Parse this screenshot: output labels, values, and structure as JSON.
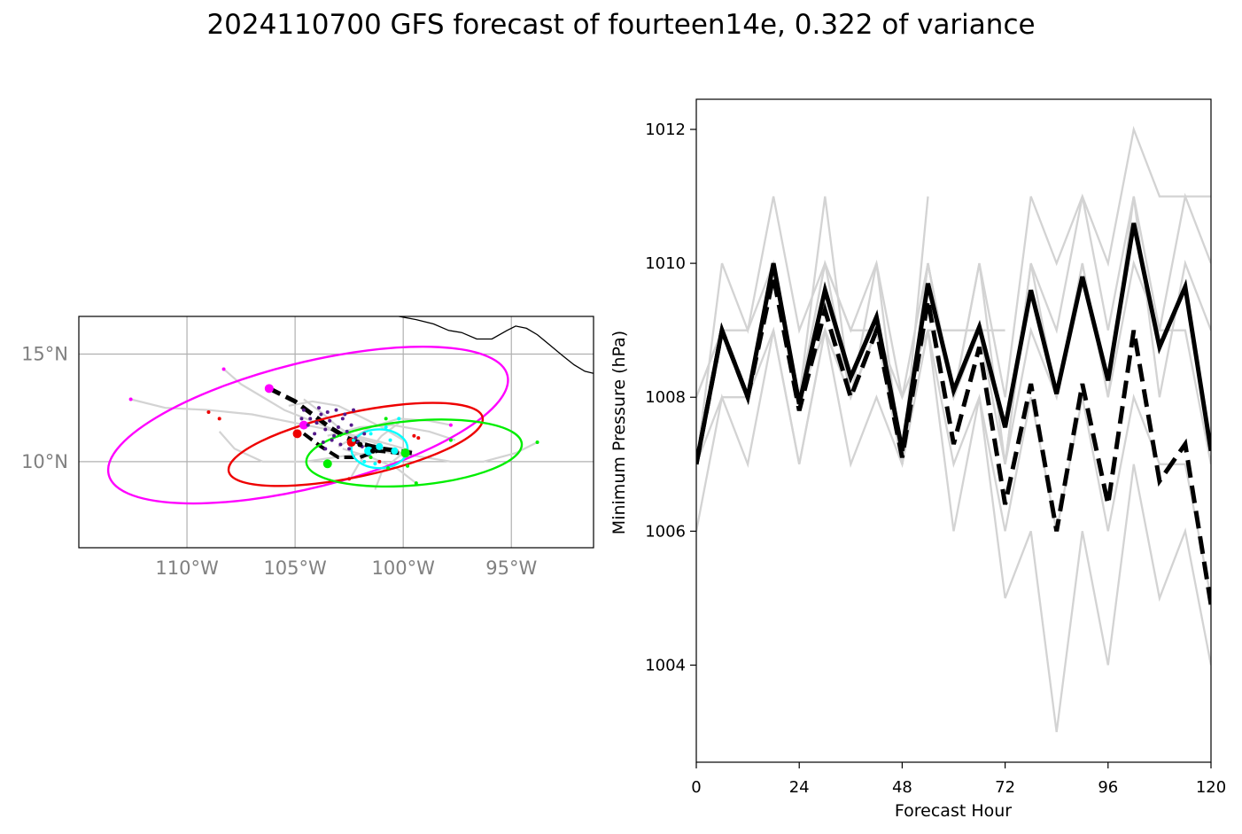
{
  "figure": {
    "title": "2024110700 GFS forecast of fourteen14e, 0.322 of variance"
  },
  "chart_data": [
    {
      "type": "map",
      "lon_range": [
        -115,
        -91.2
      ],
      "lat_range": [
        6.0,
        16.75
      ],
      "x_ticks": [
        {
          "value": -110,
          "label": "110°W"
        },
        {
          "value": -105,
          "label": "105°W"
        },
        {
          "value": -100,
          "label": "100°W"
        },
        {
          "value": -95,
          "label": "95°W"
        }
      ],
      "y_ticks": [
        {
          "value": 15,
          "label": "15°N"
        },
        {
          "value": 10,
          "label": "10°N"
        }
      ],
      "grid": true,
      "colors": {
        "ensemble": "#d3d3d3",
        "mean": "#000000",
        "coast": "#000000"
      },
      "coastline": [
        [
          -100.2,
          16.75
        ],
        [
          -99.4,
          16.6
        ],
        [
          -98.6,
          16.4
        ],
        [
          -97.9,
          16.1
        ],
        [
          -97.3,
          16.0
        ],
        [
          -96.6,
          15.7
        ],
        [
          -95.9,
          15.7
        ],
        [
          -95.2,
          16.1
        ],
        [
          -94.8,
          16.3
        ],
        [
          -94.3,
          16.2
        ],
        [
          -93.8,
          15.9
        ],
        [
          -93.2,
          15.4
        ],
        [
          -92.6,
          14.9
        ],
        [
          -92.1,
          14.5
        ],
        [
          -91.6,
          14.2
        ],
        [
          -91.2,
          14.1
        ]
      ],
      "ellipses": [
        {
          "name": "magenta",
          "color": "#ff00ff",
          "cx": -104.4,
          "cy": 11.7,
          "rx": 9.5,
          "ry": 2.9,
          "angle": -14
        },
        {
          "name": "red",
          "color": "#ee0000",
          "cx": -102.2,
          "cy": 10.8,
          "rx": 6.0,
          "ry": 1.5,
          "angle": -12
        },
        {
          "name": "green",
          "color": "#00ee00",
          "cx": -99.5,
          "cy": 10.4,
          "rx": 5.0,
          "ry": 1.5,
          "angle": -5
        },
        {
          "name": "cyan",
          "color": "#00ffff",
          "cx": -101.1,
          "cy": 10.6,
          "rx": 1.3,
          "ry": 0.9,
          "angle": 0
        }
      ],
      "mean_track": [
        [
          -106.2,
          13.4
        ],
        [
          -105.0,
          12.8
        ],
        [
          -104.2,
          12.2
        ],
        [
          -103.4,
          11.6
        ],
        [
          -102.6,
          11.1
        ],
        [
          -101.8,
          10.8
        ],
        [
          -101.0,
          10.6
        ],
        [
          -100.2,
          10.5
        ],
        [
          -99.6,
          10.4
        ]
      ],
      "mean_track_2": [
        [
          -104.6,
          11.3
        ],
        [
          -103.8,
          10.7
        ],
        [
          -103.0,
          10.2
        ],
        [
          -102.0,
          10.2
        ],
        [
          -101.2,
          10.5
        ],
        [
          -100.2,
          10.4
        ]
      ],
      "ensemble_tracks": [
        [
          [
            -112.6,
            12.9
          ],
          [
            -111.0,
            12.5
          ],
          [
            -109.0,
            12.4
          ],
          [
            -107.0,
            12.2
          ],
          [
            -105.0,
            11.8
          ],
          [
            -103.0,
            11.4
          ],
          [
            -101.0,
            10.9
          ],
          [
            -99.6,
            10.5
          ]
        ],
        [
          [
            -108.3,
            14.3
          ],
          [
            -107.5,
            13.6
          ],
          [
            -106.5,
            13.0
          ],
          [
            -105.5,
            12.4
          ],
          [
            -104.0,
            11.8
          ],
          [
            -102.5,
            11.2
          ],
          [
            -101.0,
            10.8
          ]
        ],
        [
          [
            -108.5,
            11.4
          ],
          [
            -107.8,
            10.6
          ],
          [
            -106.5,
            10.0
          ],
          [
            -104.5,
            10.0
          ],
          [
            -102.5,
            10.3
          ],
          [
            -100.5,
            10.5
          ],
          [
            -99.5,
            10.3
          ]
        ],
        [
          [
            -97.8,
            11.7
          ],
          [
            -98.8,
            11.9
          ],
          [
            -100.2,
            12.0
          ],
          [
            -101.5,
            11.6
          ],
          [
            -102.5,
            11.0
          ],
          [
            -103.0,
            10.7
          ]
        ],
        [
          [
            -93.8,
            10.9
          ],
          [
            -94.8,
            10.4
          ],
          [
            -96.3,
            10.0
          ],
          [
            -97.8,
            10.0
          ],
          [
            -99.0,
            10.2
          ],
          [
            -100.3,
            10.4
          ]
        ],
        [
          [
            -97.6,
            11.0
          ],
          [
            -98.8,
            11.4
          ],
          [
            -100.5,
            11.7
          ],
          [
            -102.0,
            11.6
          ],
          [
            -103.5,
            11.2
          ]
        ],
        [
          [
            -101.3,
            8.7
          ],
          [
            -101.0,
            9.5
          ],
          [
            -100.5,
            10.0
          ],
          [
            -100.0,
            10.4
          ]
        ],
        [
          [
            -99.4,
            9.0
          ],
          [
            -100.3,
            9.7
          ],
          [
            -101.5,
            10.2
          ],
          [
            -102.8,
            10.6
          ]
        ],
        [
          [
            -104.6,
            12.9
          ],
          [
            -103.8,
            12.3
          ],
          [
            -103.0,
            11.6
          ],
          [
            -102.0,
            11.0
          ],
          [
            -101.0,
            10.5
          ],
          [
            -99.7,
            10.2
          ]
        ],
        [
          [
            -105.3,
            12.6
          ],
          [
            -104.2,
            12.8
          ],
          [
            -103.0,
            12.6
          ],
          [
            -102.0,
            12.1
          ],
          [
            -101.0,
            11.6
          ],
          [
            -100.0,
            11.0
          ]
        ],
        [
          [
            -102.4,
            9.3
          ],
          [
            -102.0,
            10.0
          ],
          [
            -101.5,
            10.6
          ],
          [
            -101.0,
            11.2
          ],
          [
            -100.2,
            11.8
          ]
        ]
      ],
      "point_groups": [
        {
          "name": "magenta",
          "color": "#ff00ff",
          "points": [
            [
              -106.2,
              13.4,
              5
            ],
            [
              -104.6,
              11.7,
              5
            ],
            [
              -108.3,
              14.3,
              2
            ],
            [
              -112.6,
              12.9,
              2
            ],
            [
              -97.8,
              11.7,
              2
            ]
          ]
        },
        {
          "name": "red",
          "color": "#ee0000",
          "points": [
            [
              -104.9,
              11.3,
              5
            ],
            [
              -102.4,
              10.9,
              5
            ],
            [
              -109.0,
              12.3,
              2
            ],
            [
              -108.5,
              12.0,
              2
            ],
            [
              -99.3,
              11.1,
              2
            ],
            [
              -99.5,
              11.2,
              2
            ],
            [
              -101.1,
              10.0,
              2
            ],
            [
              -102.5,
              9.2,
              2
            ],
            [
              -100.3,
              10.5,
              2
            ]
          ]
        },
        {
          "name": "green",
          "color": "#00ee00",
          "points": [
            [
              -103.5,
              9.9,
              5
            ],
            [
              -99.9,
              10.4,
              5
            ],
            [
              -93.8,
              10.9,
              2
            ],
            [
              -97.8,
              11.0,
              2
            ],
            [
              -99.4,
              9.0,
              2
            ],
            [
              -100.8,
              12.0,
              2
            ],
            [
              -101.5,
              10.2,
              2
            ],
            [
              -99.8,
              9.8,
              2
            ],
            [
              -100.7,
              9.7,
              2
            ]
          ]
        },
        {
          "name": "cyan",
          "color": "#00ffff",
          "points": [
            [
              -101.6,
              10.5,
              5
            ],
            [
              -101.1,
              10.7,
              4
            ],
            [
              -100.4,
              10.5,
              4
            ],
            [
              -100.2,
              12.0,
              2
            ],
            [
              -100.8,
              11.6,
              2
            ],
            [
              -101.8,
              10.0,
              2
            ],
            [
              -101.3,
              9.9,
              2
            ],
            [
              -100.6,
              11.0,
              2
            ],
            [
              -102.3,
              11.0,
              2
            ],
            [
              -101.5,
              11.3,
              2
            ]
          ]
        },
        {
          "name": "purple",
          "color": "#551a8b",
          "points": [
            [
              -104.6,
              12.4,
              2
            ],
            [
              -104.3,
              12.0,
              2
            ],
            [
              -104.0,
              11.8,
              2
            ],
            [
              -103.8,
              12.2,
              2
            ],
            [
              -103.6,
              11.5,
              2
            ],
            [
              -103.4,
              11.9,
              2
            ],
            [
              -103.2,
              11.2,
              2
            ],
            [
              -103.0,
              11.6,
              2
            ],
            [
              -102.8,
              12.0,
              2
            ],
            [
              -102.6,
              11.4,
              2
            ],
            [
              -102.4,
              11.7,
              2
            ],
            [
              -102.2,
              11.1,
              2
            ],
            [
              -104.1,
              11.3,
              2
            ],
            [
              -103.7,
              10.9,
              2
            ],
            [
              -103.3,
              11.0,
              2
            ],
            [
              -102.9,
              10.8,
              2
            ],
            [
              -102.5,
              10.6,
              2
            ],
            [
              -102.1,
              10.9,
              2
            ],
            [
              -101.8,
              11.3,
              2
            ],
            [
              -103.9,
              12.5,
              2
            ],
            [
              -103.5,
              12.3,
              2
            ],
            [
              -103.1,
              12.4,
              2
            ],
            [
              -104.4,
              11.7,
              2
            ],
            [
              -102.7,
              12.2,
              2
            ],
            [
              -101.9,
              10.7,
              2
            ],
            [
              -103.6,
              10.6,
              2
            ],
            [
              -102.3,
              12.4,
              2
            ],
            [
              -104.7,
              12.0,
              2
            ]
          ]
        },
        {
          "name": "black",
          "color": "#000000",
          "points": [
            [
              -102.0,
              10.8,
              3
            ],
            [
              -101.4,
              10.5,
              3
            ]
          ]
        }
      ]
    },
    {
      "type": "line",
      "xlabel": "Forecast Hour",
      "ylabel": "Minimum Pressure (hPa)",
      "xlim": [
        0,
        120
      ],
      "ylim": [
        1002.55,
        1012.45
      ],
      "x_ticks": [
        0,
        24,
        48,
        72,
        96,
        120
      ],
      "y_ticks": [
        1004,
        1006,
        1008,
        1010,
        1012
      ],
      "x": [
        0,
        6,
        12,
        18,
        24,
        30,
        36,
        42,
        48,
        54,
        60,
        66,
        72,
        78,
        84,
        90,
        96,
        102,
        108,
        114,
        120
      ],
      "ensemble_color": "#d3d3d3",
      "ensemble": [
        [
          1008,
          1009,
          1009,
          1010,
          1008,
          1010,
          1009,
          1009,
          1008,
          1009,
          1009,
          1009,
          1009
        ],
        [
          1007,
          1010,
          1009,
          1011,
          1009,
          1010,
          1009,
          1010,
          1008,
          1010,
          1008,
          1010,
          1008,
          1011,
          1010,
          1011,
          1010,
          1012,
          1011,
          1011,
          1011
        ],
        [
          1008,
          1009,
          1008,
          1010,
          1008,
          1011,
          1008,
          1010,
          1007,
          1011
        ],
        [
          1007,
          1009,
          1008,
          1010,
          1008,
          1009,
          1008,
          1009,
          1007,
          1010,
          1008,
          1009,
          1007,
          1010,
          1008,
          1010,
          1008,
          1011,
          1008,
          1010,
          1009
        ],
        [
          1006,
          1008,
          1007,
          1009,
          1007,
          1009,
          1007,
          1008,
          1007,
          1009,
          1006,
          1008,
          1005,
          1006,
          1003,
          1006,
          1004,
          1007,
          1005,
          1006,
          1004
        ],
        [
          1007,
          1008,
          1008,
          1009,
          1007,
          1009,
          1008,
          1009,
          1007,
          1009,
          1007,
          1008,
          1006,
          1008,
          1006,
          1008,
          1006,
          1008,
          1007,
          1007,
          1005
        ],
        [
          1007,
          1009,
          1008,
          1010,
          1008,
          1010,
          1008,
          1009,
          1007,
          1010,
          1008,
          1010,
          1007,
          1010,
          1009,
          1011,
          1009,
          1011,
          1009,
          1011,
          1010
        ],
        [
          1007,
          1009,
          1008,
          1010,
          1008,
          1009,
          1008,
          1009,
          1007,
          1010,
          1008,
          1009,
          1007,
          1009,
          1008,
          1010,
          1008,
          1010,
          1009,
          1009,
          1007
        ]
      ],
      "series": [
        {
          "style": "solid",
          "values": [
            1007.0,
            1009.0,
            1008.0,
            1010.0,
            1007.9,
            1009.6,
            1008.3,
            1009.2,
            1007.2,
            1009.7,
            1008.1,
            1009.05,
            1007.55,
            1009.6,
            1008.05,
            1009.8,
            1008.25,
            1010.6,
            1008.75,
            1009.65,
            1007.2
          ]
        },
        {
          "style": "dashed",
          "values": [
            1007.0,
            1009.0,
            1008.0,
            1009.8,
            1007.8,
            1009.3,
            1008.0,
            1009.0,
            1007.1,
            1009.45,
            1007.3,
            1008.75,
            1006.4,
            1008.2,
            1006.0,
            1008.2,
            1006.4,
            1009.0,
            1006.75,
            1007.3,
            1004.9
          ]
        }
      ]
    }
  ]
}
